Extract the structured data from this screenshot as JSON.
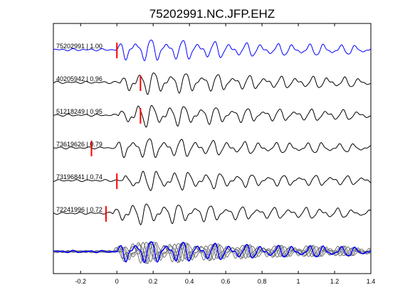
{
  "chart_data": {
    "type": "line",
    "title": "75202991.NC.JFP.EHZ",
    "xlabel": "",
    "ylabel": "",
    "xlim": [
      -0.35,
      1.4
    ],
    "xticks": [
      -0.2,
      0,
      0.2,
      0.4,
      0.6,
      0.8,
      1,
      1.2,
      1.4
    ],
    "xtick_labels": [
      "-0.2",
      "0",
      "0.2",
      "0.4",
      "0.6",
      "0.8",
      "1",
      "1.2",
      "1.4"
    ],
    "grid": false,
    "traces": [
      {
        "label": "75202991 | 1.00",
        "pick": 0.0,
        "color": "#0000ff",
        "amp": 1.0,
        "seed": 11,
        "shift": 0.0
      },
      {
        "label": "40205942 | 0.96",
        "pick": 0.13,
        "color": "#000000",
        "amp": 1.0,
        "seed": 23,
        "shift": 0.02
      },
      {
        "label": "51218249 | 0.95",
        "pick": 0.13,
        "color": "#000000",
        "amp": 1.0,
        "seed": 37,
        "shift": 0.01
      },
      {
        "label": "73619626 | 0.79",
        "pick": -0.14,
        "color": "#000000",
        "amp": 0.9,
        "seed": 41,
        "shift": -0.01
      },
      {
        "label": "73196841 | 0.74",
        "pick": 0.0,
        "color": "#000000",
        "amp": 0.9,
        "seed": 53,
        "shift": 0.03
      },
      {
        "label": "72241996 | 0.72",
        "pick": -0.06,
        "color": "#000000",
        "amp": 0.95,
        "seed": 67,
        "shift": -0.02
      }
    ],
    "stack": {
      "overlay_color": "#666666",
      "reference_color": "#0000ff"
    },
    "pick_color": "#ff0000"
  }
}
